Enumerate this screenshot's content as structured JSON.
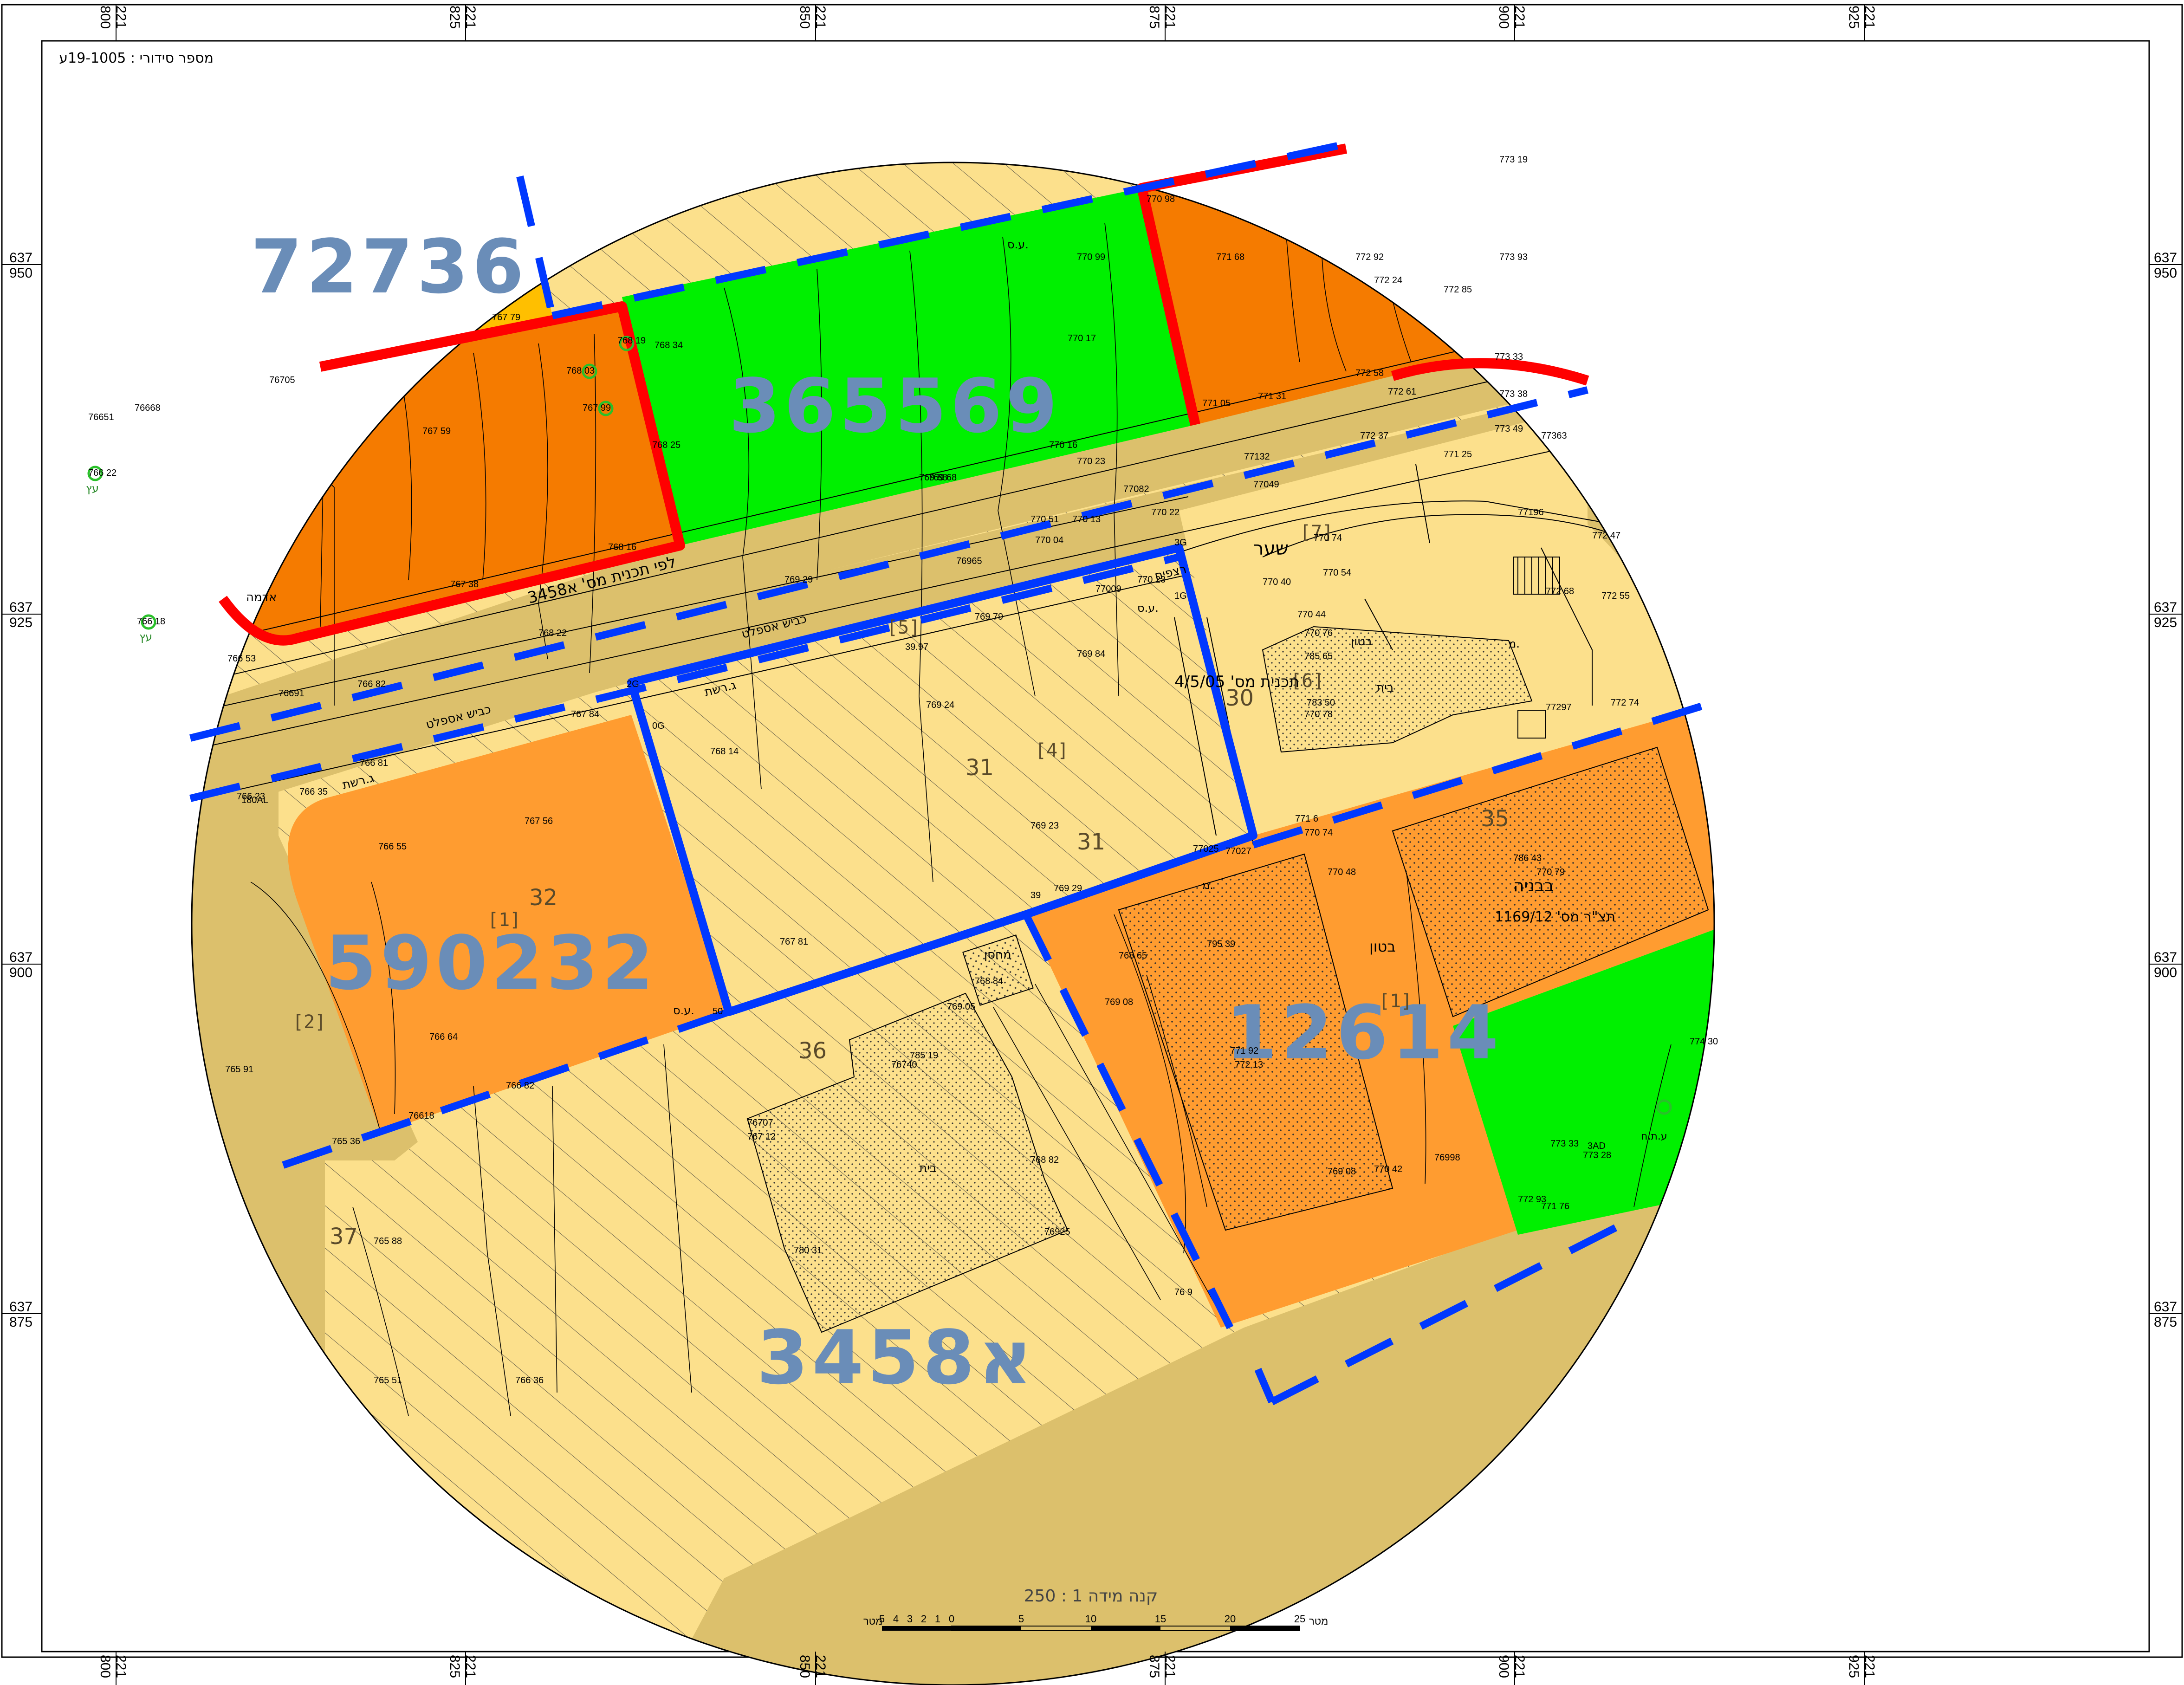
{
  "header": {
    "serial_label": "מספר סידורי : 19-1005ע"
  },
  "grid": {
    "x_labels": [
      {
        "line1": "221",
        "line2": "800"
      },
      {
        "line1": "221",
        "line2": "825"
      },
      {
        "line1": "221",
        "line2": "850"
      },
      {
        "line1": "221",
        "line2": "875"
      },
      {
        "line1": "221",
        "line2": "900"
      },
      {
        "line1": "221",
        "line2": "925"
      }
    ],
    "y_labels": [
      {
        "line1": "637",
        "line2": "950"
      },
      {
        "line1": "637",
        "line2": "925"
      },
      {
        "line1": "637",
        "line2": "900"
      },
      {
        "line1": "637",
        "line2": "875"
      }
    ]
  },
  "plan_numbers": {
    "p1": "72736",
    "p2": "365569",
    "p3": "590232",
    "p4": "12614",
    "p5": "א3458"
  },
  "lots": {
    "l30": "30",
    "l31a": "31",
    "l31b": "31",
    "l32": "32",
    "l35": "35",
    "l36": "36",
    "l37": "37",
    "b1": "[1]",
    "b1b": "[1]",
    "b2": "[2]",
    "b4": "[4]",
    "b5": "[5]",
    "b6": "[6]",
    "b7": "[7]"
  },
  "labels": {
    "home1": "בית",
    "home2": "בית",
    "adama": "אדמה",
    "kvish1": "כביש אספלט",
    "kvish2": "כביש אספלט",
    "gader1": "ג.רשת",
    "gader2": "ג.רשת",
    "shaar": "שער",
    "ratzif": "רצפים",
    "beton1": "בטון",
    "beton2": "בטון",
    "mahsan": "מחסן",
    "bebniya": "בבניה",
    "tashrit": "תצ\"ר מס' 1169/12",
    "lfi_tochnit": "לפי תכנית מס' א3458",
    "tochnit2": "תכנית מס' 4/5/05",
    "es1": "ע.ס.",
    "es2": "ע.ס.",
    "es3": "ע.ס.",
    "etz1": "עץ",
    "etz2": "עץ",
    "m1": "מ.",
    "m2": "מ.",
    "ot": "ע.ת.ח"
  },
  "elevations": [
    {
      "v": "770 98"
    },
    {
      "v": "770 99"
    },
    {
      "v": "771 68"
    },
    {
      "v": "772 92"
    },
    {
      "v": "772 24"
    },
    {
      "v": "772 85"
    },
    {
      "v": "773 19"
    },
    {
      "v": "773 93"
    },
    {
      "v": "773 33"
    },
    {
      "v": "773 38"
    },
    {
      "v": "77363"
    },
    {
      "v": "773 49"
    },
    {
      "v": "772 61"
    },
    {
      "v": "772 37"
    },
    {
      "v": "771 25"
    },
    {
      "v": "771 05"
    },
    {
      "v": "771 31"
    },
    {
      "v": "772 58"
    },
    {
      "v": "770 17"
    },
    {
      "v": "770 16"
    },
    {
      "v": "770 23"
    },
    {
      "v": "769 68"
    },
    {
      "v": "769 88"
    },
    {
      "v": "767 79"
    },
    {
      "v": "767 59"
    },
    {
      "v": "767 38"
    },
    {
      "v": "768 16"
    },
    {
      "v": "768 25"
    },
    {
      "v": "767 99"
    },
    {
      "v": "768 03"
    },
    {
      "v": "768 19"
    },
    {
      "v": "768 34"
    },
    {
      "v": "76705"
    },
    {
      "v": "76668"
    },
    {
      "v": "76651"
    },
    {
      "v": "766 53"
    },
    {
      "v": "76691"
    },
    {
      "v": "766 82"
    },
    {
      "v": "768 22"
    },
    {
      "v": "769 29"
    },
    {
      "v": "76965"
    },
    {
      "v": "770 04"
    },
    {
      "v": "770 51"
    },
    {
      "v": "770 13"
    },
    {
      "v": "770 22"
    },
    {
      "v": "77082"
    },
    {
      "v": "77049"
    },
    {
      "v": "77132"
    },
    {
      "v": "77196"
    },
    {
      "v": "772 47"
    },
    {
      "v": "772 55"
    },
    {
      "v": "772 68"
    },
    {
      "v": "772 74"
    },
    {
      "v": "77297"
    },
    {
      "v": "770 74"
    },
    {
      "v": "770 40"
    },
    {
      "v": "770 54"
    },
    {
      "v": "770 44"
    },
    {
      "v": "770 76"
    },
    {
      "v": "77009"
    },
    {
      "v": "770 23"
    },
    {
      "v": "769 79"
    },
    {
      "v": "769 84"
    },
    {
      "v": "769 24"
    },
    {
      "v": "768 14"
    },
    {
      "v": "767 84"
    },
    {
      "v": "766 81"
    },
    {
      "v": "766 35"
    },
    {
      "v": "766 23"
    },
    {
      "v": "767 56"
    },
    {
      "v": "766 55"
    },
    {
      "v": "766 64"
    },
    {
      "v": "765 91"
    },
    {
      "v": "766 82"
    },
    {
      "v": "76618"
    },
    {
      "v": "765 36"
    },
    {
      "v": "765 88"
    },
    {
      "v": "765 51"
    },
    {
      "v": "766 36"
    },
    {
      "v": "767 81"
    },
    {
      "v": "769 23"
    },
    {
      "v": "769 29"
    },
    {
      "v": "768 65"
    },
    {
      "v": "769 08"
    },
    {
      "v": "770 48"
    },
    {
      "v": "770 74"
    },
    {
      "v": "771 6"
    },
    {
      "v": "786 43"
    },
    {
      "v": "770 79"
    },
    {
      "v": "785 65"
    },
    {
      "v": "783 50"
    },
    {
      "v": "770 78"
    },
    {
      "v": "795 39"
    },
    {
      "v": "771 92"
    },
    {
      "v": "772 13"
    },
    {
      "v": "769 08"
    },
    {
      "v": "770 42"
    },
    {
      "v": "76998"
    },
    {
      "v": "773 28"
    },
    {
      "v": "772 93"
    },
    {
      "v": "771 76"
    },
    {
      "v": "774 30"
    },
    {
      "v": "773 33"
    },
    {
      "v": "768 84"
    },
    {
      "v": "769 05"
    },
    {
      "v": "785 19"
    },
    {
      "v": "76740"
    },
    {
      "v": "76707"
    },
    {
      "v": "767 12"
    },
    {
      "v": "780 31"
    },
    {
      "v": "76925"
    },
    {
      "v": "768 82"
    },
    {
      "v": "76 9"
    },
    {
      "v": "766 22"
    },
    {
      "v": "766 18"
    },
    {
      "v": "39.97"
    },
    {
      "v": "3G"
    },
    {
      "v": "2G"
    },
    {
      "v": "0G"
    },
    {
      "v": "39"
    },
    {
      "v": "50"
    },
    {
      "v": "180AL"
    },
    {
      "v": "1G"
    },
    {
      "v": "3AD"
    },
    {
      "v": "77025"
    },
    {
      "v": "77027"
    }
  ],
  "scale": {
    "title": "קנה מידה   1 : 250",
    "ticks_left": [
      "5",
      "4",
      "3",
      "2",
      "1",
      "0"
    ],
    "ticks_right": [
      "5",
      "10",
      "15",
      "20",
      "25"
    ],
    "unit_left": "מטר",
    "unit_right": "מטר"
  },
  "colors": {
    "yellow": "#fce08c",
    "tan": "#dcc06c",
    "orange_dark": "#f57b00",
    "orange_light": "#ff9c30",
    "gold": "#ffbf00",
    "green": "#00f000",
    "red": "#ff0000",
    "blue": "#0038ff",
    "plan_text": "#6a8db8"
  }
}
